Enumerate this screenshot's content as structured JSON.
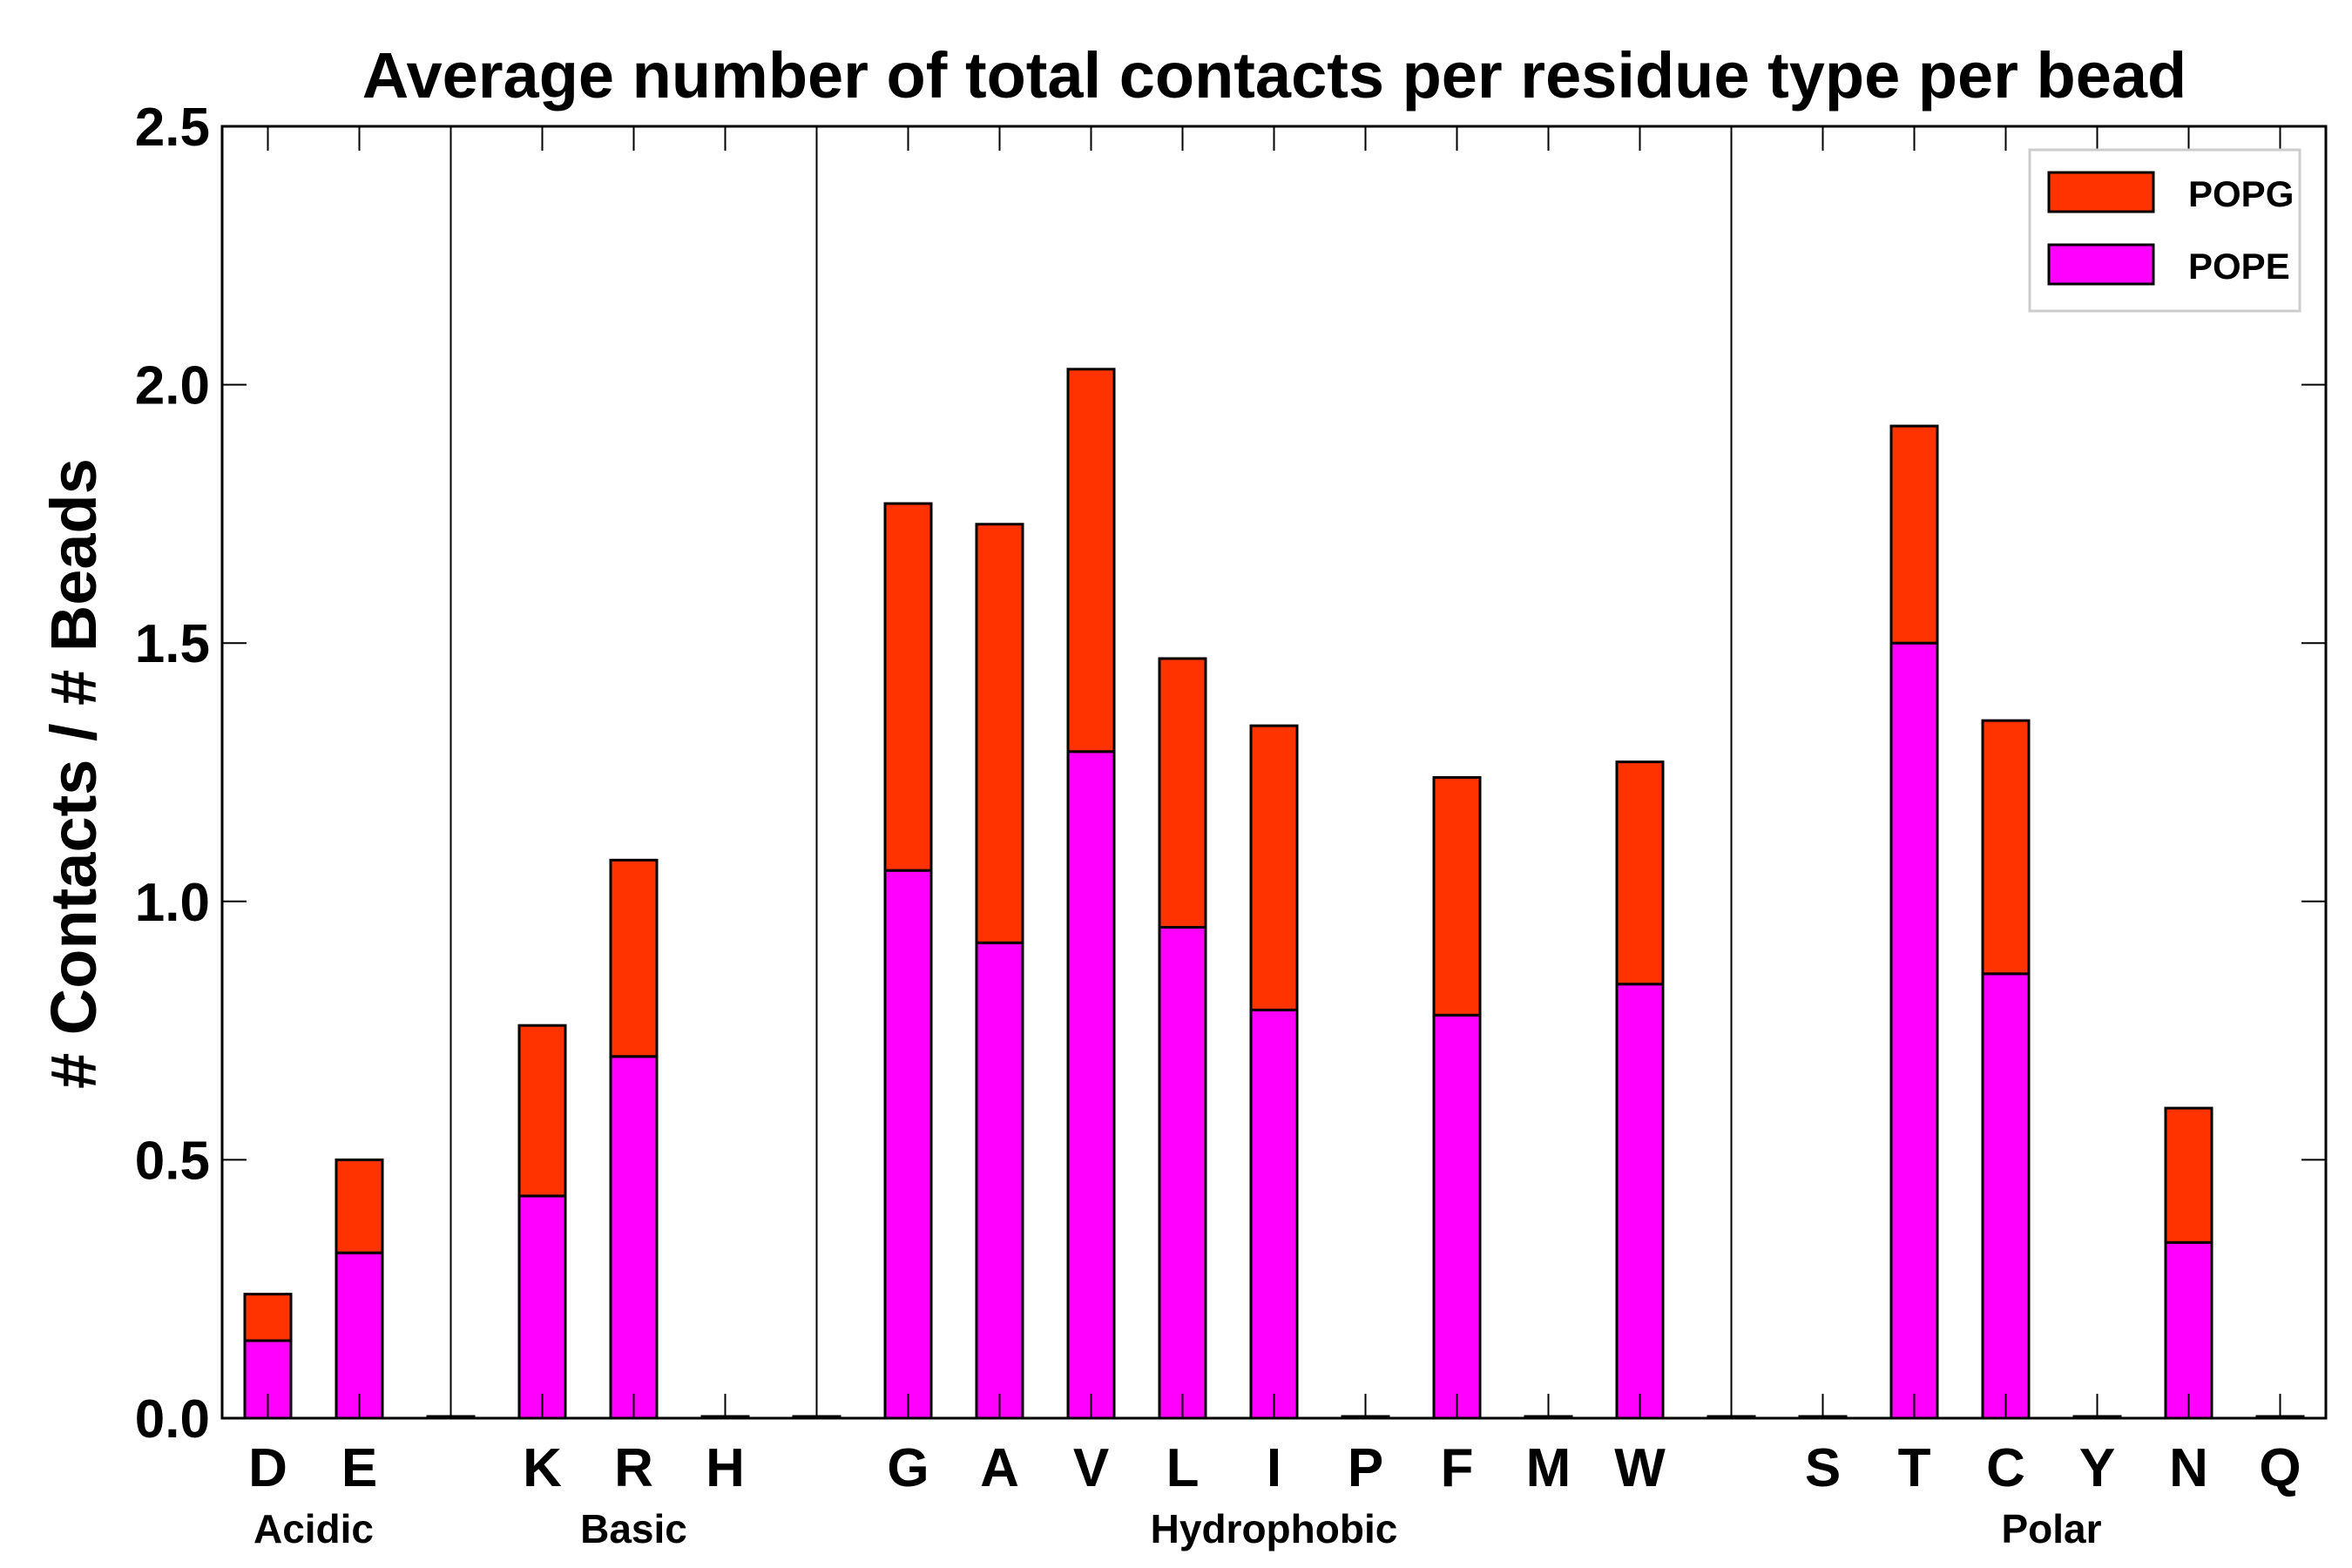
{
  "chart_data": {
    "type": "bar",
    "stacked": true,
    "title": "Average number of total contacts per residue type per bead",
    "xlabel": "",
    "ylabel": "# Contacts / # Beads",
    "ylim": [
      0,
      2.5
    ],
    "yticks": [
      "0.0",
      "0.5",
      "1.0",
      "1.5",
      "2.0",
      "2.5"
    ],
    "legend_position": "top-right",
    "colors": {
      "POPE": "#ff00ff",
      "POPG": "#ff3300"
    },
    "categories": [
      "D",
      "E",
      "",
      "K",
      "R",
      "H",
      "",
      "G",
      "A",
      "V",
      "L",
      "I",
      "P",
      "F",
      "M",
      "W",
      "",
      "S",
      "T",
      "C",
      "Y",
      "N",
      "Q"
    ],
    "groups": [
      {
        "name": "Acidic",
        "members": [
          "D",
          "E"
        ]
      },
      {
        "name": "Basic",
        "members": [
          "K",
          "R",
          "H"
        ]
      },
      {
        "name": "Hydrophobic",
        "members": [
          "G",
          "A",
          "V",
          "L",
          "I",
          "P",
          "F",
          "M",
          "W"
        ]
      },
      {
        "name": "Polar",
        "members": [
          "S",
          "T",
          "C",
          "Y",
          "N",
          "Q"
        ]
      }
    ],
    "series": [
      {
        "name": "POPE",
        "values": [
          0.15,
          0.32,
          0,
          0.43,
          0.7,
          0,
          0,
          1.06,
          0.92,
          1.29,
          0.95,
          0.79,
          0,
          0.78,
          0,
          0.84,
          0,
          0,
          1.5,
          0.86,
          0,
          0.34,
          0
        ]
      },
      {
        "name": "POPG",
        "values": [
          0.09,
          0.18,
          0,
          0.33,
          0.38,
          0,
          0,
          0.71,
          0.81,
          0.74,
          0.52,
          0.55,
          0,
          0.46,
          0,
          0.43,
          0,
          0,
          0.42,
          0.49,
          0,
          0.26,
          0
        ]
      }
    ],
    "legend": [
      "POPG",
      "POPE"
    ]
  }
}
